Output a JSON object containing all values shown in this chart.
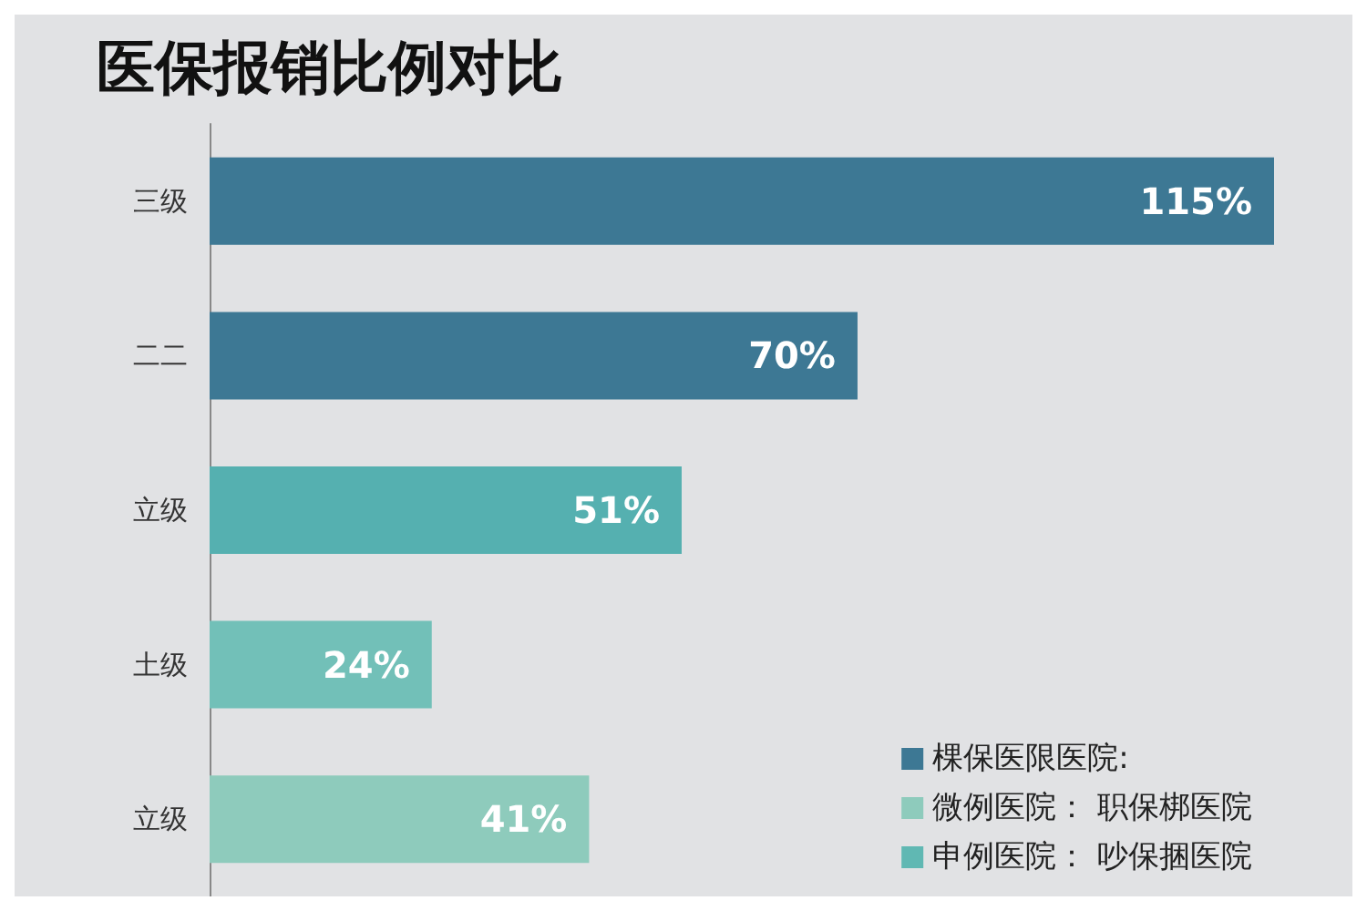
{
  "chart_data": {
    "type": "bar",
    "title": "医保报销比例对比",
    "orientation": "horizontal",
    "stacked": true,
    "legend": "bottom right",
    "tick_labels": "y",
    "categories": [
      "三级",
      "二二",
      "立级",
      "土级",
      "立级"
    ],
    "series": [
      {
        "name": "棵保医限医院:",
        "color": "#3d7894",
        "values": [
          115,
          70,
          null,
          null,
          null
        ],
        "value_labels": [
          "115%",
          "70%",
          null,
          null,
          null
        ]
      },
      {
        "name": "微例医院： 职保梆医院",
        "color": "#8ecbbc",
        "values": [
          null,
          null,
          null,
          null,
          41
        ],
        "value_labels": [
          null,
          null,
          null,
          null,
          "41%"
        ]
      },
      {
        "name": "申例医院： 吵保捆医院",
        "color": "#60b8b3",
        "colors": [
          null,
          null,
          "#55b0b0",
          "#72c0b8",
          null
        ],
        "values": [
          null,
          null,
          51,
          24,
          null
        ],
        "value_labels": [
          null,
          null,
          "51%",
          "24%",
          null
        ]
      }
    ]
  }
}
